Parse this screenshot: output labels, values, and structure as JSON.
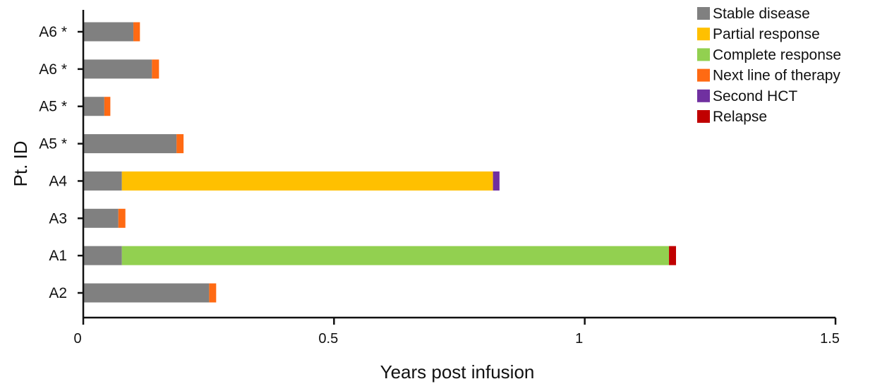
{
  "chart_data": {
    "type": "bar",
    "orientation": "horizontal",
    "stacked": true,
    "xlabel": "Years post infusion",
    "ylabel": "Pt. ID",
    "xlim": [
      0,
      1.5
    ],
    "xticks": [
      0,
      0.5,
      1,
      1.5
    ],
    "xtick_labels": [
      "0",
      "0.5",
      "1",
      "1.5"
    ],
    "grid": false,
    "legend_position": "top-right",
    "legend": [
      {
        "name": "Stable disease",
        "color": "#808080"
      },
      {
        "name": "Partial response",
        "color": "#ffc000"
      },
      {
        "name": "Complete response",
        "color": "#92d050"
      },
      {
        "name": "Next line of therapy",
        "color": "#ff6a13"
      },
      {
        "name": "Second HCT",
        "color": "#7030a0"
      },
      {
        "name": "Relapse",
        "color": "#c00000"
      }
    ],
    "categories": [
      "A6 *",
      "A6 *",
      "A5 *",
      "A5 *",
      "A4",
      "A3",
      "A1",
      "A2"
    ],
    "bars": [
      {
        "label": "A6 *",
        "segments": [
          {
            "state": "Stable disease",
            "start": 0,
            "end": 0.1
          },
          {
            "state": "Next line of therapy",
            "start": 0.1,
            "end": 0.113
          }
        ]
      },
      {
        "label": "A6 *",
        "segments": [
          {
            "state": "Stable disease",
            "start": 0,
            "end": 0.137
          },
          {
            "state": "Next line of therapy",
            "start": 0.137,
            "end": 0.151
          }
        ]
      },
      {
        "label": "A5 *",
        "segments": [
          {
            "state": "Stable disease",
            "start": 0,
            "end": 0.042
          },
          {
            "state": "Next line of therapy",
            "start": 0.042,
            "end": 0.054
          }
        ]
      },
      {
        "label": "A5 *",
        "segments": [
          {
            "state": "Stable disease",
            "start": 0,
            "end": 0.186
          },
          {
            "state": "Next line of therapy",
            "start": 0.186,
            "end": 0.2
          }
        ]
      },
      {
        "label": "A4",
        "segments": [
          {
            "state": "Stable disease",
            "start": 0,
            "end": 0.077
          },
          {
            "state": "Partial response",
            "start": 0.077,
            "end": 0.817
          },
          {
            "state": "Second HCT",
            "start": 0.817,
            "end": 0.83
          }
        ]
      },
      {
        "label": "A3",
        "segments": [
          {
            "state": "Stable disease",
            "start": 0,
            "end": 0.07
          },
          {
            "state": "Next line of therapy",
            "start": 0.07,
            "end": 0.084
          }
        ]
      },
      {
        "label": "A1",
        "segments": [
          {
            "state": "Stable disease",
            "start": 0,
            "end": 0.077
          },
          {
            "state": "Complete response",
            "start": 0.077,
            "end": 1.168
          },
          {
            "state": "Relapse",
            "start": 1.168,
            "end": 1.182
          }
        ]
      },
      {
        "label": "A2",
        "segments": [
          {
            "state": "Stable disease",
            "start": 0,
            "end": 0.251
          },
          {
            "state": "Next line of therapy",
            "start": 0.251,
            "end": 0.265
          }
        ]
      }
    ]
  }
}
